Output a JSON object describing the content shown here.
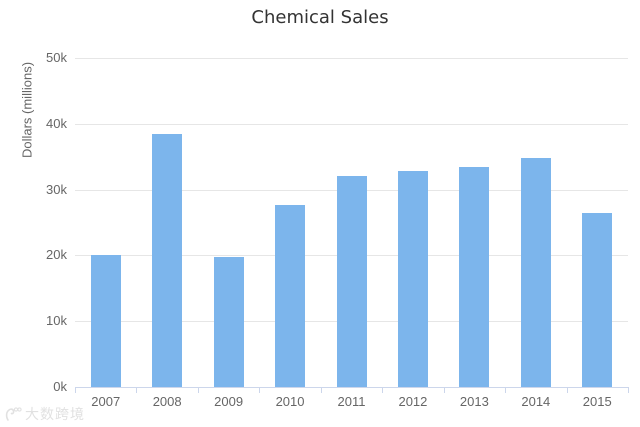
{
  "chart_data": {
    "type": "bar",
    "title": "Chemical Sales",
    "xlabel": "",
    "ylabel": "Dollars (millions)",
    "categories": [
      "2007",
      "2008",
      "2009",
      "2010",
      "2011",
      "2012",
      "2013",
      "2014",
      "2015"
    ],
    "values": [
      20100,
      38400,
      19800,
      27600,
      32000,
      32900,
      33400,
      34800,
      26500
    ],
    "ylim": [
      0,
      50000
    ],
    "yticks": [
      0,
      10000,
      20000,
      30000,
      40000,
      50000
    ],
    "ytick_labels": [
      "0k",
      "10k",
      "20k",
      "30k",
      "40k",
      "50k"
    ],
    "grid": true,
    "legend_position": "none",
    "colors": {
      "bar": "#7cb5ec",
      "gridline": "#e6e6e6",
      "axis_line": "#ccd6eb",
      "tick": "#ccd6eb",
      "label_text": "#666666",
      "title_text": "#333333",
      "background": "#ffffff"
    }
  },
  "watermark": {
    "text": "大数跨境"
  }
}
